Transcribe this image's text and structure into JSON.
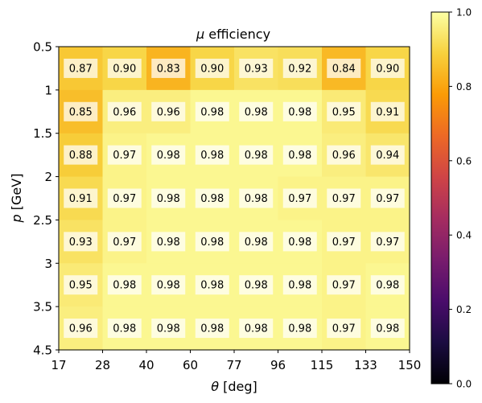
{
  "chart_data": {
    "type": "heatmap",
    "title": "μ efficiency",
    "title_math_symbol": "μ",
    "title_text": " efficiency",
    "xlabel_symbol": "θ",
    "xlabel_unit": " [deg]",
    "ylabel_symbol": "p",
    "ylabel_unit": " [GeV]",
    "x_edges": [
      "17",
      "28",
      "40",
      "60",
      "77",
      "96",
      "115",
      "133",
      "150"
    ],
    "y_edges": [
      "0.5",
      "1",
      "1.5",
      "2",
      "2.5",
      "3",
      "3.5",
      "4.5"
    ],
    "values": [
      [
        0.87,
        0.9,
        0.83,
        0.9,
        0.93,
        0.92,
        0.84,
        0.9
      ],
      [
        0.85,
        0.96,
        0.96,
        0.98,
        0.98,
        0.98,
        0.95,
        0.91
      ],
      [
        0.88,
        0.97,
        0.98,
        0.98,
        0.98,
        0.98,
        0.96,
        0.94
      ],
      [
        0.91,
        0.97,
        0.98,
        0.98,
        0.98,
        0.97,
        0.97,
        0.97
      ],
      [
        0.93,
        0.97,
        0.98,
        0.98,
        0.98,
        0.98,
        0.97,
        0.97
      ],
      [
        0.95,
        0.98,
        0.98,
        0.98,
        0.98,
        0.98,
        0.97,
        0.98
      ],
      [
        0.96,
        0.98,
        0.98,
        0.98,
        0.98,
        0.98,
        0.97,
        0.98
      ]
    ],
    "value_labels": [
      [
        "0.87",
        "0.90",
        "0.83",
        "0.90",
        "0.93",
        "0.92",
        "0.84",
        "0.90"
      ],
      [
        "0.85",
        "0.96",
        "0.96",
        "0.98",
        "0.98",
        "0.98",
        "0.95",
        "0.91"
      ],
      [
        "0.88",
        "0.97",
        "0.98",
        "0.98",
        "0.98",
        "0.98",
        "0.96",
        "0.94"
      ],
      [
        "0.91",
        "0.97",
        "0.98",
        "0.98",
        "0.98",
        "0.97",
        "0.97",
        "0.97"
      ],
      [
        "0.93",
        "0.97",
        "0.98",
        "0.98",
        "0.98",
        "0.98",
        "0.97",
        "0.97"
      ],
      [
        "0.95",
        "0.98",
        "0.98",
        "0.98",
        "0.98",
        "0.98",
        "0.97",
        "0.98"
      ],
      [
        "0.96",
        "0.98",
        "0.98",
        "0.98",
        "0.98",
        "0.98",
        "0.97",
        "0.98"
      ]
    ],
    "colorbar": {
      "range": [
        0.0,
        1.0
      ],
      "ticks": [
        "0.0",
        "0.2",
        "0.4",
        "0.6",
        "0.8",
        "1.0"
      ],
      "colormap": "inferno",
      "colormap_stops": [
        "#000004",
        "#1b0c41",
        "#4a0c6b",
        "#781c6d",
        "#a52c60",
        "#cf4446",
        "#ed6925",
        "#fb9b06",
        "#f7d13d",
        "#fcffa4"
      ]
    },
    "grid": false
  }
}
